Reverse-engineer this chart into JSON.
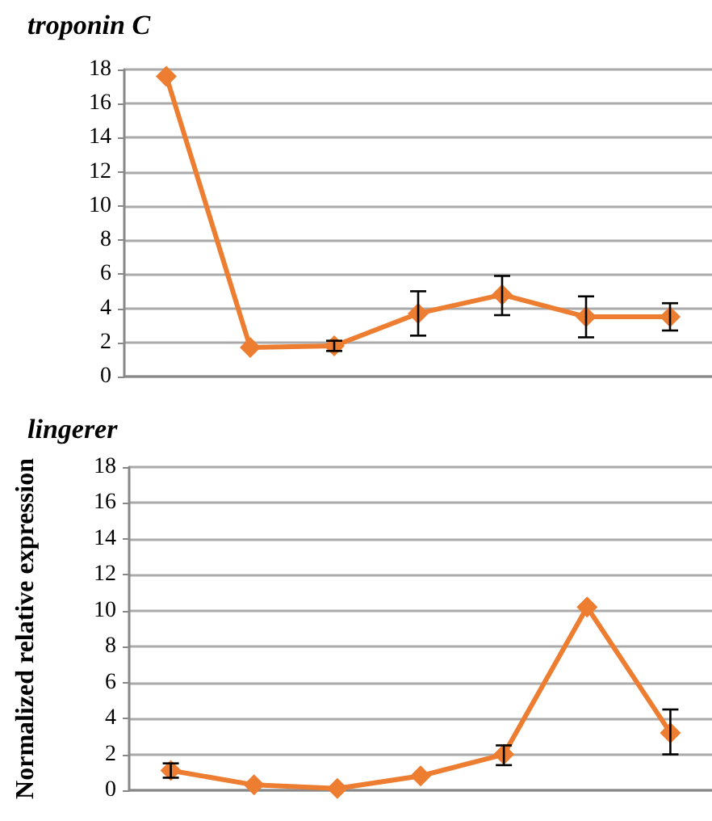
{
  "chart_data": [
    {
      "type": "line",
      "title": "troponin C",
      "categories": [
        null,
        null,
        null,
        null,
        null,
        null,
        null
      ],
      "series": [
        {
          "color": "#ed7d31",
          "values": [
            17.6,
            1.7,
            1.8,
            3.7,
            4.8,
            3.5,
            3.5
          ],
          "errors": [
            null,
            null,
            0.3,
            [
              2.4,
              5.0
            ],
            [
              3.6,
              5.9
            ],
            [
              2.3,
              4.7
            ],
            [
              2.7,
              4.3
            ]
          ]
        }
      ],
      "ylim": [
        0,
        18
      ],
      "yticks": [
        0,
        2,
        4,
        6,
        8,
        10,
        12,
        14,
        16,
        18
      ],
      "grid": "y",
      "marker": "diamond",
      "line_style": "solid"
    },
    {
      "type": "line",
      "title": "lingerer",
      "ylabel": "Normalized relative expression",
      "categories": [
        null,
        null,
        null,
        null,
        null,
        null,
        null
      ],
      "series": [
        {
          "color": "#ed7d31",
          "values": [
            1.1,
            0.3,
            0.1,
            0.8,
            2.0,
            10.2,
            3.2
          ],
          "errors": [
            0.4,
            null,
            null,
            null,
            [
              1.4,
              2.5
            ],
            null,
            [
              2.0,
              4.5
            ]
          ]
        }
      ],
      "ylim": [
        0,
        18
      ],
      "yticks": [
        0,
        2,
        4,
        6,
        8,
        10,
        12,
        14,
        16,
        18
      ],
      "grid": "y",
      "marker": "diamond",
      "line_style": "solid"
    }
  ]
}
